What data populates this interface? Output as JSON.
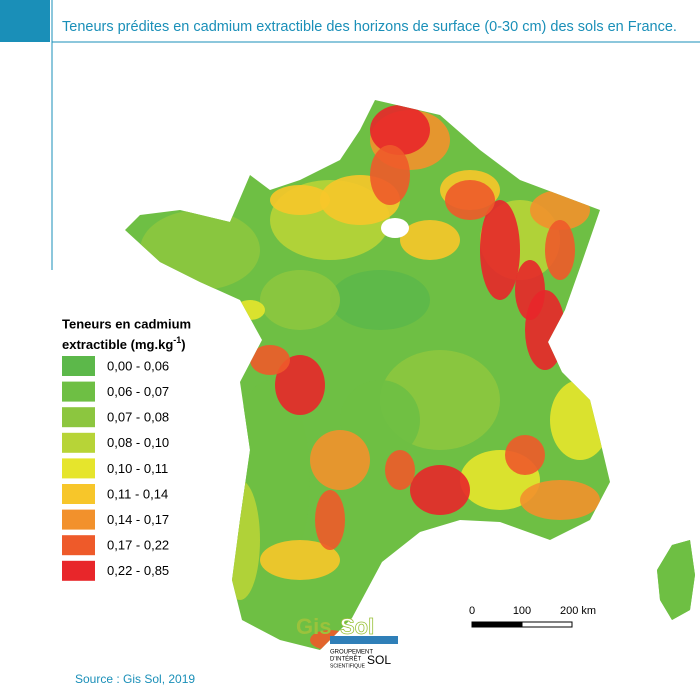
{
  "header": {
    "title": "Teneurs prédites en cadmium extractible des horizons de surface (0-30 cm) des sols en France."
  },
  "legend": {
    "title_line1": "Teneurs en cadmium",
    "title_line2": "extractible (mg.kg",
    "title_sup": "-1",
    "title_end": ")",
    "classes": [
      {
        "label": "0,00 - 0,06",
        "color": "#5cb84a"
      },
      {
        "label": "0,06 - 0,07",
        "color": "#6ebf44"
      },
      {
        "label": "0,07 - 0,08",
        "color": "#8cc63f"
      },
      {
        "label": "0,08 - 0,10",
        "color": "#b7d437"
      },
      {
        "label": "0,10 - 0,11",
        "color": "#e6e52c"
      },
      {
        "label": "0,11 - 0,14",
        "color": "#f7c62a"
      },
      {
        "label": "0,14 - 0,17",
        "color": "#f2912c"
      },
      {
        "label": "0,17 - 0,22",
        "color": "#ee5a2a"
      },
      {
        "label": "0,22 - 0,85",
        "color": "#e8262a"
      }
    ]
  },
  "scale": {
    "labels": [
      "0",
      "100",
      "200 km"
    ]
  },
  "logo": {
    "part1": "Gis",
    "part2": "Sol",
    "line1": "GROUPEMENT",
    "line2": "D'INTÉRÊT",
    "line3": "SCIENTIFIQUE",
    "line4": "SOL"
  },
  "source": "Source : Gis Sol, 2019"
}
